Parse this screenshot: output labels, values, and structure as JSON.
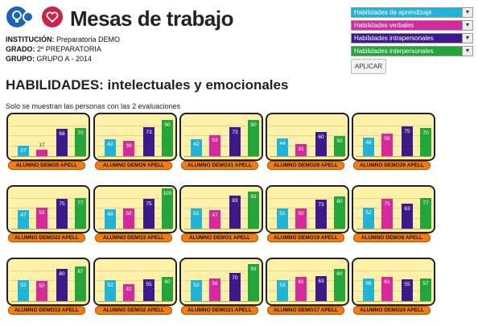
{
  "header": {
    "title": "Mesas de trabajo",
    "institucion_label": "INSTITUCIÓN:",
    "institucion_value": "Preparatoria DEMO",
    "grado_label": "GRADO:",
    "grado_value": "2º PREPARATORIA",
    "grupo_label": "GRUPO:",
    "grupo_value": "GRUPO A - 2014",
    "logos": [
      "lightbulb-icon",
      "heart-icon"
    ]
  },
  "filters": {
    "selects": [
      {
        "value": "Habilidades de aprendizaje",
        "color": "#21b4d9"
      },
      {
        "value": "Habilidades verbales",
        "color": "#d6299b"
      },
      {
        "value": "Habilidades intrapersonales",
        "color": "#3d1a8c"
      },
      {
        "value": "Habilidades interpersonales",
        "color": "#22a63a"
      }
    ],
    "apply_label": "APLICAR"
  },
  "section": {
    "heading": "HABILIDADES: intelectuales y emocionales",
    "note": "Solo se muestran las personas con las 2 evaluaciones"
  },
  "colors": [
    "#21b4d9",
    "#d6299b",
    "#3d1a8c",
    "#22a63a"
  ],
  "chart_data": [
    {
      "type": "bar",
      "name": "ALUMNO DEMO5 APELL",
      "categories": [
        "Habilidades de aprendizaje",
        "Habilidades verbales",
        "Habilidades intrapersonales",
        "Habilidades interpersonales"
      ],
      "values": [
        27,
        17,
        68,
        70
      ],
      "ylim": [
        0,
        100
      ]
    },
    {
      "type": "bar",
      "name": "ALUMNO DEMO9 APELL",
      "categories": [
        "Habilidades de aprendizaje",
        "Habilidades verbales",
        "Habilidades intrapersonales",
        "Habilidades interpersonales"
      ],
      "values": [
        42,
        39,
        73,
        90
      ],
      "ylim": [
        0,
        100
      ]
    },
    {
      "type": "bar",
      "name": "ALUMNO DEMO31 APELL",
      "categories": [
        "Habilidades de aprendizaje",
        "Habilidades verbales",
        "Habilidades intrapersonales",
        "Habilidades interpersonales"
      ],
      "values": [
        42,
        53,
        73,
        90
      ],
      "ylim": [
        0,
        100
      ]
    },
    {
      "type": "bar",
      "name": "ALUMNO DEMO29 APELL",
      "categories": [
        "Habilidades de aprendizaje",
        "Habilidades verbales",
        "Habilidades intrapersonales",
        "Habilidades interpersonales"
      ],
      "values": [
        44,
        31,
        60,
        50
      ],
      "ylim": [
        0,
        100
      ]
    },
    {
      "type": "bar",
      "name": "ALUMNO DEMO26 APELL",
      "categories": [
        "Habilidades de aprendizaje",
        "Habilidades verbales",
        "Habilidades intrapersonales",
        "Habilidades interpersonales"
      ],
      "values": [
        46,
        56,
        75,
        70
      ],
      "ylim": [
        0,
        100
      ]
    },
    {
      "type": "bar",
      "name": "ALUMNO DEMO22 APELL",
      "categories": [
        "Habilidades de aprendizaje",
        "Habilidades verbales",
        "Habilidades intrapersonales",
        "Habilidades interpersonales"
      ],
      "values": [
        47,
        53,
        75,
        77
      ],
      "ylim": [
        0,
        100
      ]
    },
    {
      "type": "bar",
      "name": "ALUMNO DEMO3 APELL",
      "categories": [
        "Habilidades de aprendizaje",
        "Habilidades verbales",
        "Habilidades intrapersonales",
        "Habilidades interpersonales"
      ],
      "values": [
        49,
        50,
        75,
        100
      ],
      "ylim": [
        0,
        100
      ]
    },
    {
      "type": "bar",
      "name": "ALUMNO DEMO1 APELL",
      "categories": [
        "Habilidades de aprendizaje",
        "Habilidades verbales",
        "Habilidades intrapersonales",
        "Habilidades interpersonales"
      ],
      "values": [
        51,
        47,
        83,
        93
      ],
      "ylim": [
        0,
        100
      ]
    },
    {
      "type": "bar",
      "name": "ALUMNO DEMO19 APELL",
      "categories": [
        "Habilidades de aprendizaje",
        "Habilidades verbales",
        "Habilidades intrapersonales",
        "Habilidades interpersonales"
      ],
      "values": [
        51,
        50,
        73,
        80
      ],
      "ylim": [
        0,
        100
      ]
    },
    {
      "type": "bar",
      "name": "ALUMNO DEMO8 APELL",
      "categories": [
        "Habilidades de aprendizaje",
        "Habilidades verbales",
        "Habilidades intrapersonales",
        "Habilidades interpersonales"
      ],
      "values": [
        52,
        75,
        63,
        77
      ],
      "ylim": [
        0,
        100
      ]
    },
    {
      "type": "bar",
      "name": "ALUMNO DEMO13 APELL",
      "categories": [
        "Habilidades de aprendizaje",
        "Habilidades verbales",
        "Habilidades intrapersonales",
        "Habilidades interpersonales"
      ],
      "values": [
        52,
        50,
        80,
        87
      ],
      "ylim": [
        0,
        100
      ]
    },
    {
      "type": "bar",
      "name": "ALUMNO DEMO2 APELL",
      "categories": [
        "Habilidades de aprendizaje",
        "Habilidades verbales",
        "Habilidades intrapersonales",
        "Habilidades interpersonales"
      ],
      "values": [
        52,
        42,
        55,
        60
      ],
      "ylim": [
        0,
        100
      ]
    },
    {
      "type": "bar",
      "name": "ALUMNO DEMO21 APELL",
      "categories": [
        "Habilidades de aprendizaje",
        "Habilidades verbales",
        "Habilidades intrapersonales",
        "Habilidades interpersonales"
      ],
      "values": [
        53,
        56,
        70,
        93
      ],
      "ylim": [
        0,
        100
      ]
    },
    {
      "type": "bar",
      "name": "ALUMNO DEMO17 APELL",
      "categories": [
        "Habilidades de aprendizaje",
        "Habilidades verbales",
        "Habilidades intrapersonales",
        "Habilidades interpersonales"
      ],
      "values": [
        53,
        61,
        63,
        80
      ],
      "ylim": [
        0,
        100
      ]
    },
    {
      "type": "bar",
      "name": "ALUMNO DEMO24 APELL",
      "categories": [
        "Habilidades de aprendizaje",
        "Habilidades verbales",
        "Habilidades intrapersonales",
        "Habilidades interpersonales"
      ],
      "values": [
        56,
        61,
        55,
        57
      ],
      "ylim": [
        0,
        100
      ]
    }
  ]
}
